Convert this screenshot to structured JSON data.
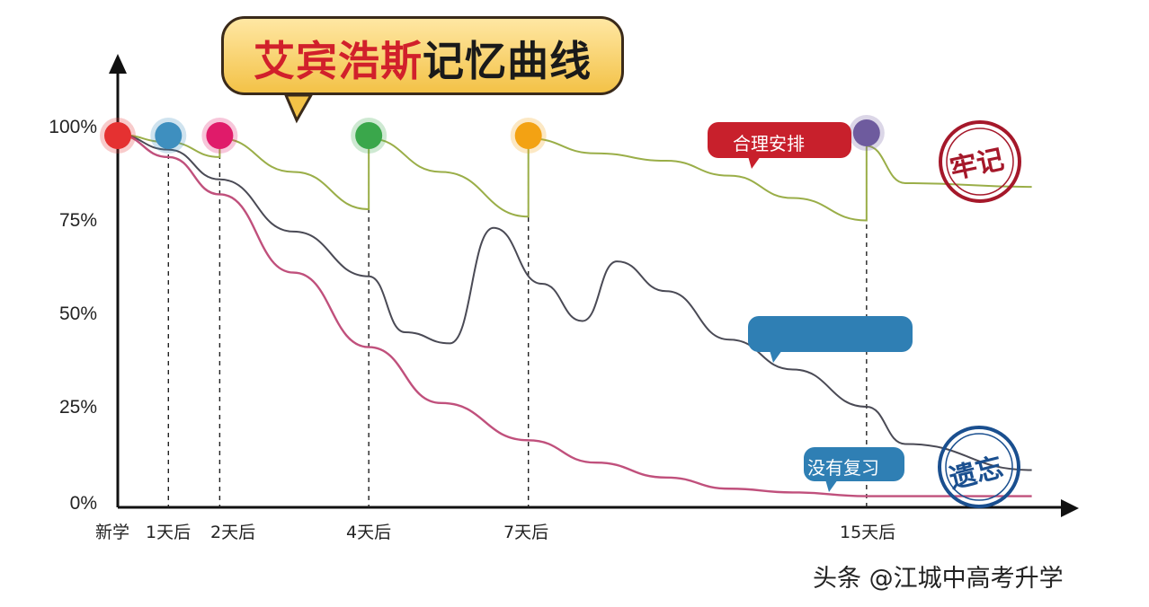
{
  "chart_data": {
    "type": "line",
    "title_part1": "艾宾浩斯",
    "title_part2": "记忆曲线",
    "x_ticks": [
      "新学",
      "1天后",
      "2天后",
      "4天后",
      "7天后",
      "15天后"
    ],
    "y_ticks": [
      "100%",
      "75%",
      "50%",
      "25%",
      "0%"
    ],
    "ylim": [
      0,
      100
    ],
    "series": [
      {
        "name": "合理安排",
        "color": "#9aae48",
        "points": [
          [
            0,
            100
          ],
          [
            1,
            98
          ],
          [
            2,
            94
          ],
          [
            2,
            99
          ],
          [
            3,
            90
          ],
          [
            4,
            80
          ],
          [
            4,
            99
          ],
          [
            5,
            90
          ],
          [
            6,
            78
          ],
          [
            6,
            99
          ],
          [
            7,
            95
          ],
          [
            8,
            93
          ],
          [
            9,
            89
          ],
          [
            10,
            83
          ],
          [
            11,
            77
          ],
          [
            11,
            97
          ],
          [
            12,
            87
          ],
          [
            13,
            86
          ]
        ]
      },
      {
        "name": "",
        "color": "#4a4a55",
        "points": [
          [
            0,
            100
          ],
          [
            1,
            96
          ],
          [
            2,
            88
          ],
          [
            3,
            74
          ],
          [
            4,
            62
          ],
          [
            4.5,
            47
          ],
          [
            5.1,
            44
          ],
          [
            5.6,
            75
          ],
          [
            6.2,
            60
          ],
          [
            6.8,
            50
          ],
          [
            7.3,
            66
          ],
          [
            8,
            58
          ],
          [
            9,
            45
          ],
          [
            10,
            37
          ],
          [
            11,
            27
          ],
          [
            12,
            17
          ],
          [
            13,
            10
          ]
        ]
      },
      {
        "name": "没有复习",
        "color": "#c0507c",
        "points": [
          [
            0,
            100
          ],
          [
            1,
            94
          ],
          [
            2,
            84
          ],
          [
            3,
            63
          ],
          [
            4,
            43
          ],
          [
            5,
            28
          ],
          [
            6,
            18
          ],
          [
            7,
            12
          ],
          [
            8,
            8
          ],
          [
            9,
            5
          ],
          [
            10,
            4
          ],
          [
            11,
            3
          ],
          [
            12,
            3
          ],
          [
            13,
            3
          ]
        ]
      }
    ],
    "markers": [
      {
        "label": "新学",
        "color": "#e53131"
      },
      {
        "label": "1天后",
        "color": "#3e8fbf"
      },
      {
        "label": "2天后",
        "color": "#e01b6a"
      },
      {
        "label": "4天后",
        "color": "#3aa74b"
      },
      {
        "label": "7天后",
        "color": "#f3a213"
      },
      {
        "label": "15天后",
        "color": "#6e5b9e"
      }
    ],
    "callouts": [
      {
        "text": "合理安排",
        "color": "#c8202c"
      },
      {
        "text": "没有复习",
        "color": "#2f7fb4"
      }
    ],
    "stamps": [
      {
        "text": "牢记",
        "color": "#a5182a"
      },
      {
        "text": "遗忘",
        "color": "#1a4f8f"
      }
    ]
  },
  "watermark": "头条 @江城中高考升学"
}
